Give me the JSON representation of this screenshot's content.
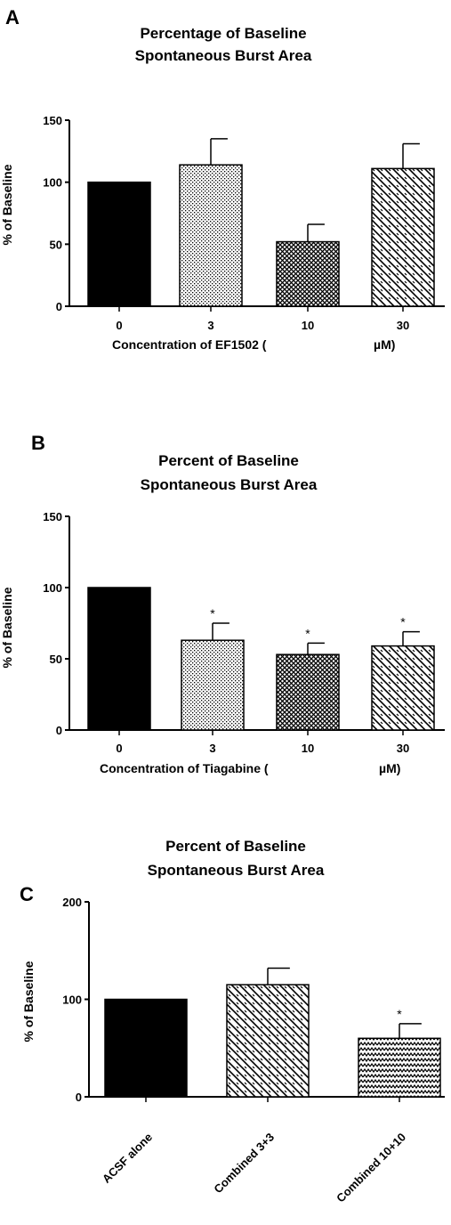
{
  "chart_data": [
    {
      "panel": "A",
      "type": "bar",
      "title": [
        "Percentage of Baseline",
        "Spontaneous Burst Area"
      ],
      "ylabel": "% of Baseline",
      "xlabel": [
        "Concentration of EF1502 (",
        "µM)"
      ],
      "ylim": [
        0,
        150
      ],
      "yticks": [
        "0",
        "50",
        "100",
        "150"
      ],
      "categories": [
        "0",
        "3",
        "10",
        "30"
      ],
      "values": [
        100,
        114,
        52,
        111
      ],
      "errors": [
        0,
        21,
        14,
        20
      ],
      "patterns": [
        "solid",
        "dots",
        "crosshatch",
        "diagonal"
      ],
      "significance": [
        "",
        "",
        "",
        ""
      ]
    },
    {
      "panel": "B",
      "type": "bar",
      "title": [
        "Percent of Baseline",
        "Spontaneous Burst Area"
      ],
      "ylabel": "% of Baseline",
      "xlabel": [
        "Concentration of Tiagabine (",
        "µM)"
      ],
      "ylim": [
        0,
        150
      ],
      "yticks": [
        "0",
        "50",
        "100",
        "150"
      ],
      "categories": [
        "0",
        "3",
        "10",
        "30"
      ],
      "values": [
        100,
        63,
        53,
        59
      ],
      "errors": [
        0,
        12,
        8,
        10
      ],
      "patterns": [
        "solid",
        "dots",
        "crosshatch",
        "diagonal"
      ],
      "significance": [
        "",
        "*",
        "*",
        "*"
      ]
    },
    {
      "panel": "C",
      "type": "bar",
      "title": [
        "Percent of Baseline",
        "Spontaneous Burst Area"
      ],
      "ylabel": "% of Baseline",
      "xlabel": [
        "",
        ""
      ],
      "ylim": [
        0,
        200
      ],
      "yticks": [
        "0",
        "100",
        "200"
      ],
      "categories": [
        "ACSF alone",
        "Combined 3+3",
        "Combined 10+10"
      ],
      "values": [
        100,
        115,
        60
      ],
      "errors": [
        0,
        17,
        15
      ],
      "patterns": [
        "solid",
        "diagonal",
        "zigzag"
      ],
      "significance": [
        "",
        "",
        "*"
      ]
    }
  ]
}
